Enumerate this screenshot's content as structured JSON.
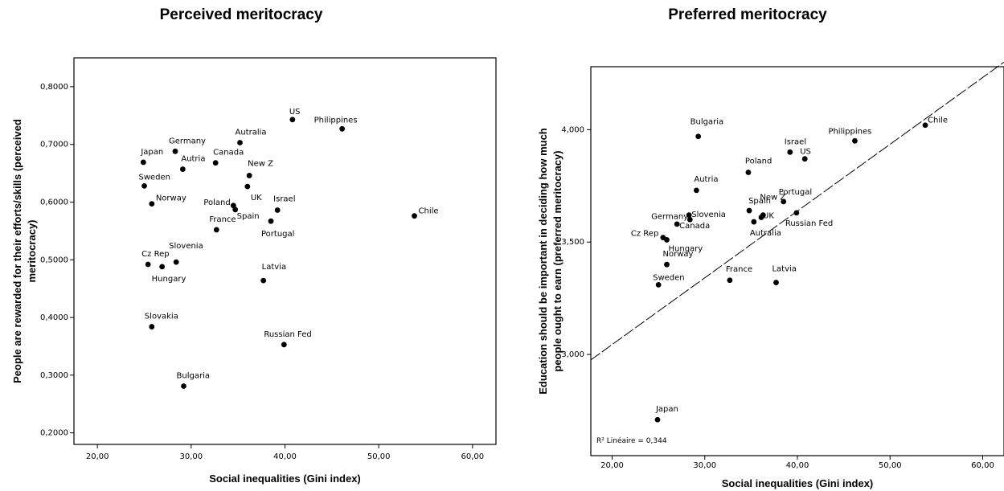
{
  "chart_data": [
    {
      "type": "scatter",
      "title": "Perceived meritocracy",
      "xlabel": "Social inequalities (Gini index)",
      "ylabel_lines": [
        "People are rewarded for their efforts/skills (perceived",
        "meritocracy)"
      ],
      "xlim": [
        17.5,
        62.5
      ],
      "ylim": [
        0.18,
        0.85
      ],
      "xticks": [
        "20,00",
        "30,00",
        "40,00",
        "50,00",
        "60,00"
      ],
      "yticks": [
        "0,2000",
        "0,3000",
        "0,4000",
        "0,5000",
        "0,6000",
        "0,7000",
        "0,8000"
      ],
      "points": [
        {
          "label": "US",
          "x": 40.8,
          "y": 0.743
        },
        {
          "label": "Philippines",
          "x": 46.1,
          "y": 0.727
        },
        {
          "label": "Autralia",
          "x": 35.2,
          "y": 0.703
        },
        {
          "label": "Germany",
          "x": 28.3,
          "y": 0.688
        },
        {
          "label": "Japan",
          "x": 24.9,
          "y": 0.669
        },
        {
          "label": "Canada",
          "x": 32.6,
          "y": 0.668
        },
        {
          "label": "Autria",
          "x": 29.1,
          "y": 0.657
        },
        {
          "label": "New Z",
          "x": 36.2,
          "y": 0.646
        },
        {
          "label": "Sweden",
          "x": 25.0,
          "y": 0.628
        },
        {
          "label": "UK",
          "x": 36.0,
          "y": 0.627
        },
        {
          "label": "Norway",
          "x": 25.8,
          "y": 0.597
        },
        {
          "label": "Poland",
          "x": 34.5,
          "y": 0.594
        },
        {
          "label": "Spain",
          "x": 34.7,
          "y": 0.587
        },
        {
          "label": "Israel",
          "x": 39.2,
          "y": 0.586
        },
        {
          "label": "Chile",
          "x": 53.8,
          "y": 0.576
        },
        {
          "label": "Portugal",
          "x": 38.5,
          "y": 0.567
        },
        {
          "label": "France",
          "x": 32.7,
          "y": 0.552
        },
        {
          "label": "Slovenia",
          "x": 28.4,
          "y": 0.496
        },
        {
          "label": "Cz Rep",
          "x": 25.4,
          "y": 0.492
        },
        {
          "label": "Hungary",
          "x": 26.9,
          "y": 0.488
        },
        {
          "label": "Latvia",
          "x": 37.7,
          "y": 0.464
        },
        {
          "label": "Slovakia",
          "x": 25.8,
          "y": 0.384
        },
        {
          "label": "Russian Fed",
          "x": 39.9,
          "y": 0.353
        },
        {
          "label": "Bulgaria",
          "x": 29.2,
          "y": 0.281
        }
      ]
    },
    {
      "type": "scatter",
      "title": "Preferred meritocracy",
      "xlabel": "Social inequalities (Gini index)",
      "ylabel_lines": [
        "Education should be important in deciding how much",
        "people ought to earn (preferred meritocracy)"
      ],
      "xlim": [
        17.7,
        62.3
      ],
      "ylim": [
        2.55,
        4.28
      ],
      "xticks": [
        "20,00",
        "30,00",
        "40,00",
        "50,00",
        "60,00"
      ],
      "yticks": [
        "3,000",
        "3,500",
        "4,000"
      ],
      "fit_line": {
        "intercept": 2.45,
        "slope": 0.0297
      },
      "r2_text": "R² Linéaire = 0,344",
      "points": [
        {
          "label": "Chile",
          "x": 53.8,
          "y": 4.02
        },
        {
          "label": "Bulgaria",
          "x": 29.3,
          "y": 3.97
        },
        {
          "label": "Philippines",
          "x": 46.2,
          "y": 3.95
        },
        {
          "label": "Israel",
          "x": 39.2,
          "y": 3.9
        },
        {
          "label": "US",
          "x": 40.8,
          "y": 3.87
        },
        {
          "label": "Poland",
          "x": 34.7,
          "y": 3.81
        },
        {
          "label": "Autria",
          "x": 29.1,
          "y": 3.73
        },
        {
          "label": "Portugal",
          "x": 38.5,
          "y": 3.68
        },
        {
          "label": "New Z",
          "x": 36.3,
          "y": 3.62
        },
        {
          "label": "Spain",
          "x": 34.8,
          "y": 3.64
        },
        {
          "label": "Russian Fed",
          "x": 39.9,
          "y": 3.63
        },
        {
          "label": "Germany",
          "x": 28.3,
          "y": 3.62
        },
        {
          "label": "Slovenia",
          "x": 28.4,
          "y": 3.6
        },
        {
          "label": "UK",
          "x": 36.1,
          "y": 3.61
        },
        {
          "label": "Autralia",
          "x": 35.3,
          "y": 3.59
        },
        {
          "label": "Canada",
          "x": 27.0,
          "y": 3.58
        },
        {
          "label": "Cz Rep",
          "x": 25.5,
          "y": 3.52
        },
        {
          "label": "Hungary",
          "x": 25.9,
          "y": 3.51
        },
        {
          "label": "Norway",
          "x": 25.9,
          "y": 3.4
        },
        {
          "label": "France",
          "x": 32.7,
          "y": 3.33
        },
        {
          "label": "Latvia",
          "x": 37.7,
          "y": 3.32
        },
        {
          "label": "Sweden",
          "x": 25.0,
          "y": 3.31
        },
        {
          "label": "Japan",
          "x": 24.9,
          "y": 2.71
        }
      ]
    }
  ]
}
